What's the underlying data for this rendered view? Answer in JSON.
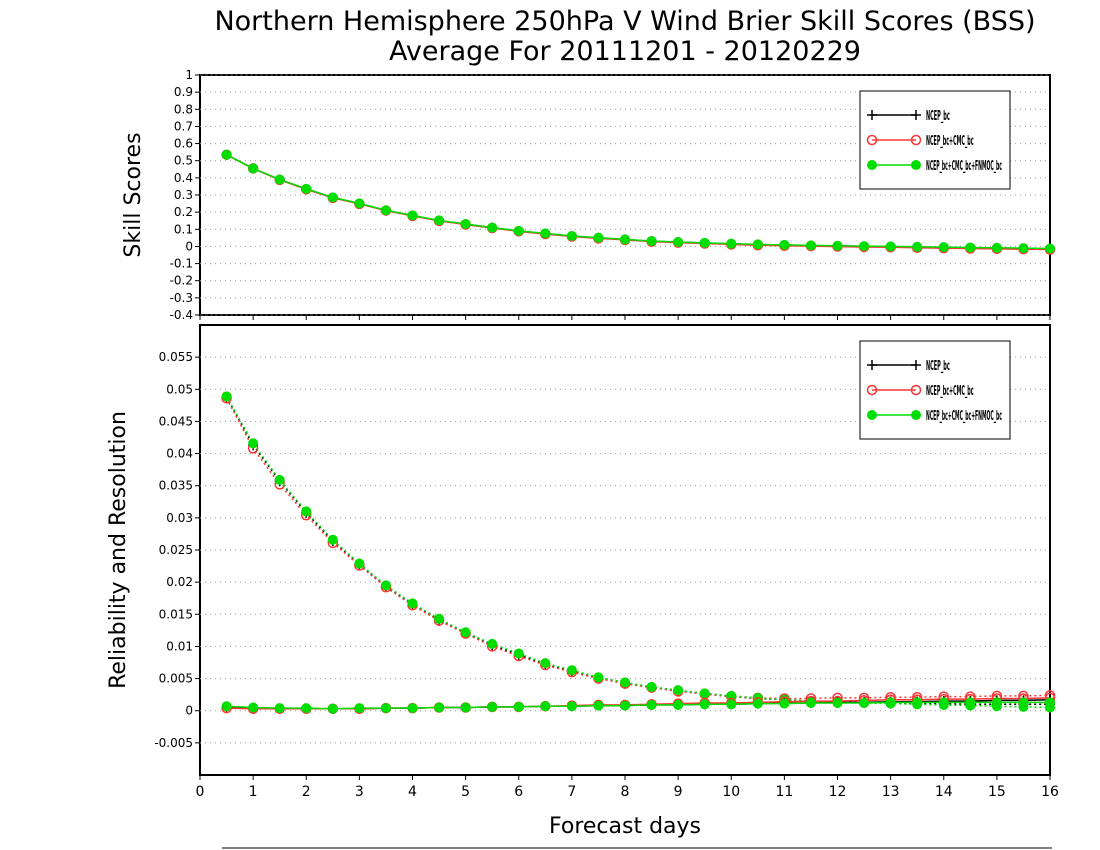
{
  "title_line1": "Northern Hemisphere 250hPa V Wind Brier Skill Scores (BSS)",
  "title_line2": "Average For 20111201 - 20120229",
  "colors": {
    "black": "#000000",
    "red": "#ff3333",
    "green": "#00dd00",
    "grid": "#999999"
  },
  "chart_data": [
    {
      "type": "line",
      "ylabel": "Skill Scores",
      "xlim": [
        0,
        16
      ],
      "ylim": [
        -0.4,
        1
      ],
      "yticks": [
        "1",
        "0.9",
        "0.8",
        "0.7",
        "0.6",
        "0.5",
        "0.4",
        "0.3",
        "0.2",
        "0.1",
        "0",
        "-0.1",
        "-0.2",
        "-0.3",
        "-0.4"
      ],
      "ytick_values": [
        1,
        0.9,
        0.8,
        0.7,
        0.6,
        0.5,
        0.4,
        0.3,
        0.2,
        0.1,
        0,
        -0.1,
        -0.2,
        -0.3,
        -0.4
      ],
      "grid": "horizontal dotted",
      "legend_position": "top-right",
      "legend": [
        "NCEP_bc",
        "NCEP_bc+CMC_bc",
        "NCEP_bc+CMC_bc+FNMOC_bc"
      ],
      "x": [
        0.5,
        1,
        1.5,
        2,
        2.5,
        3,
        3.5,
        4,
        4.5,
        5,
        5.5,
        6,
        6.5,
        7,
        7.5,
        8,
        8.5,
        9,
        9.5,
        10,
        10.5,
        11,
        11.5,
        12,
        12.5,
        13,
        13.5,
        14,
        14.5,
        15,
        15.5,
        16
      ],
      "series": [
        {
          "name": "NCEP_bc",
          "color": "black",
          "marker": "plus",
          "values": [
            0.535,
            0.455,
            0.39,
            0.335,
            0.285,
            0.25,
            0.21,
            0.18,
            0.15,
            0.13,
            0.11,
            0.09,
            0.075,
            0.06,
            0.05,
            0.04,
            0.03,
            0.025,
            0.02,
            0.015,
            0.01,
            0.008,
            0.005,
            0.003,
            0.0,
            -0.002,
            -0.004,
            -0.006,
            -0.008,
            -0.01,
            -0.012,
            -0.014
          ]
        },
        {
          "name": "NCEP_bc+CMC_bc",
          "color": "red",
          "marker": "open-circle",
          "values": [
            0.535,
            0.455,
            0.388,
            0.333,
            0.283,
            0.248,
            0.209,
            0.178,
            0.149,
            0.128,
            0.107,
            0.088,
            0.072,
            0.058,
            0.047,
            0.038,
            0.028,
            0.022,
            0.017,
            0.012,
            0.007,
            0.004,
            0.002,
            -0.001,
            -0.003,
            -0.005,
            -0.008,
            -0.01,
            -0.012,
            -0.014,
            -0.016,
            -0.018
          ]
        },
        {
          "name": "NCEP_bc+CMC_bc+FNMOC_bc",
          "color": "green",
          "marker": "filled-circle",
          "values": [
            0.535,
            0.455,
            0.39,
            0.336,
            0.286,
            0.251,
            0.211,
            0.181,
            0.152,
            0.131,
            0.11,
            0.091,
            0.076,
            0.061,
            0.051,
            0.041,
            0.032,
            0.026,
            0.021,
            0.016,
            0.012,
            0.009,
            0.006,
            0.004,
            0.002,
            0.0,
            -0.002,
            -0.004,
            -0.006,
            -0.008,
            -0.01,
            -0.012
          ]
        }
      ]
    },
    {
      "type": "line",
      "ylabel": "Reliability and Resolution",
      "xlabel": "Forecast days",
      "xlim": [
        0,
        16
      ],
      "ylim": [
        -0.01,
        0.06
      ],
      "yticks": [
        "0.055",
        "0.05",
        "0.045",
        "0.04",
        "0.035",
        "0.03",
        "0.025",
        "0.02",
        "0.015",
        "0.01",
        "0.005",
        "0",
        "-0.005"
      ],
      "ytick_values": [
        0.055,
        0.05,
        0.045,
        0.04,
        0.035,
        0.03,
        0.025,
        0.02,
        0.015,
        0.01,
        0.005,
        0,
        -0.005
      ],
      "xticks": [
        "0",
        "1",
        "2",
        "3",
        "4",
        "5",
        "6",
        "7",
        "8",
        "9",
        "10",
        "11",
        "12",
        "13",
        "14",
        "15",
        "16"
      ],
      "xtick_values": [
        0,
        1,
        2,
        3,
        4,
        5,
        6,
        7,
        8,
        9,
        10,
        11,
        12,
        13,
        14,
        15,
        16
      ],
      "grid": "horizontal dotted",
      "legend_position": "top-right",
      "legend": [
        "NCEP_bc",
        "NCEP_bc+CMC_bc",
        "NCEP_bc+CMC_bc+FNMOC_bc"
      ],
      "x": [
        0.5,
        1,
        1.5,
        2,
        2.5,
        3,
        3.5,
        4,
        4.5,
        5,
        5.5,
        6,
        6.5,
        7,
        7.5,
        8,
        8.5,
        9,
        9.5,
        10,
        10.5,
        11,
        11.5,
        12,
        12.5,
        13,
        13.5,
        14,
        14.5,
        15,
        15.5,
        16
      ],
      "series": [
        {
          "name": "NCEP_bc resolution",
          "color": "black",
          "marker": "plus",
          "line": "dotted",
          "values": [
            0.0488,
            0.0413,
            0.0357,
            0.0308,
            0.0264,
            0.0228,
            0.0193,
            0.0166,
            0.0141,
            0.0121,
            0.0102,
            0.0087,
            0.0072,
            0.0061,
            0.0051,
            0.0043,
            0.0036,
            0.0031,
            0.0026,
            0.0022,
            0.0019,
            0.0017,
            0.0015,
            0.0014,
            0.0013,
            0.0012,
            0.0011,
            0.0011,
            0.001,
            0.001,
            0.001,
            0.001
          ]
        },
        {
          "name": "NCEP_bc+CMC_bc resolution",
          "color": "red",
          "marker": "open-circle",
          "line": "dotted",
          "values": [
            0.0486,
            0.0408,
            0.0352,
            0.0304,
            0.0261,
            0.0226,
            0.0192,
            0.0164,
            0.014,
            0.012,
            0.01,
            0.0085,
            0.0071,
            0.006,
            0.005,
            0.0042,
            0.0036,
            0.003,
            0.0026,
            0.0022,
            0.002,
            0.0019,
            0.0019,
            0.002,
            0.002,
            0.0021,
            0.0021,
            0.0022,
            0.0022,
            0.0023,
            0.0023,
            0.0024
          ]
        },
        {
          "name": "NCEP_bc+CMC_bc+FNMOC_bc resolution",
          "color": "green",
          "marker": "filled-circle",
          "line": "dotted",
          "values": [
            0.0489,
            0.0416,
            0.0359,
            0.031,
            0.0266,
            0.0229,
            0.0195,
            0.0167,
            0.0143,
            0.0122,
            0.0104,
            0.0089,
            0.0074,
            0.0063,
            0.0052,
            0.0044,
            0.0037,
            0.0032,
            0.0027,
            0.0023,
            0.002,
            0.0017,
            0.0015,
            0.0013,
            0.0012,
            0.0011,
            0.001,
            0.0009,
            0.0008,
            0.0007,
            0.0006,
            0.0005
          ]
        },
        {
          "name": "NCEP_bc reliability",
          "color": "black",
          "marker": "plus",
          "line": "solid",
          "values": [
            0.0006,
            0.0004,
            0.0003,
            0.0003,
            0.0003,
            0.0003,
            0.0004,
            0.0004,
            0.0005,
            0.0005,
            0.0006,
            0.0006,
            0.0007,
            0.0007,
            0.0008,
            0.0008,
            0.0009,
            0.0009,
            0.001,
            0.001,
            0.0011,
            0.0012,
            0.0012,
            0.0013,
            0.0013,
            0.0014,
            0.0014,
            0.0015,
            0.0015,
            0.0016,
            0.0016,
            0.0017
          ]
        },
        {
          "name": "NCEP_bc+CMC_bc reliability",
          "color": "red",
          "marker": "open-circle",
          "line": "solid",
          "values": [
            0.0004,
            0.0003,
            0.0003,
            0.0003,
            0.0003,
            0.0003,
            0.0004,
            0.0004,
            0.0005,
            0.0005,
            0.0006,
            0.0006,
            0.0007,
            0.0008,
            0.0009,
            0.0009,
            0.001,
            0.0011,
            0.0012,
            0.0012,
            0.0013,
            0.0014,
            0.0015,
            0.0015,
            0.0016,
            0.0017,
            0.0017,
            0.0018,
            0.0018,
            0.0019,
            0.0019,
            0.002
          ]
        },
        {
          "name": "NCEP_bc+CMC_bc+FNMOC_bc reliability",
          "color": "green",
          "marker": "filled-circle",
          "line": "solid",
          "values": [
            0.0007,
            0.0005,
            0.0004,
            0.0004,
            0.0003,
            0.0004,
            0.0004,
            0.0004,
            0.0005,
            0.0005,
            0.0006,
            0.0006,
            0.0007,
            0.0007,
            0.0008,
            0.0008,
            0.0009,
            0.0009,
            0.001,
            0.001,
            0.0011,
            0.0011,
            0.0012,
            0.0012,
            0.0012,
            0.0013,
            0.0013,
            0.0013,
            0.0013,
            0.0013,
            0.0013,
            0.0013
          ]
        }
      ]
    }
  ]
}
